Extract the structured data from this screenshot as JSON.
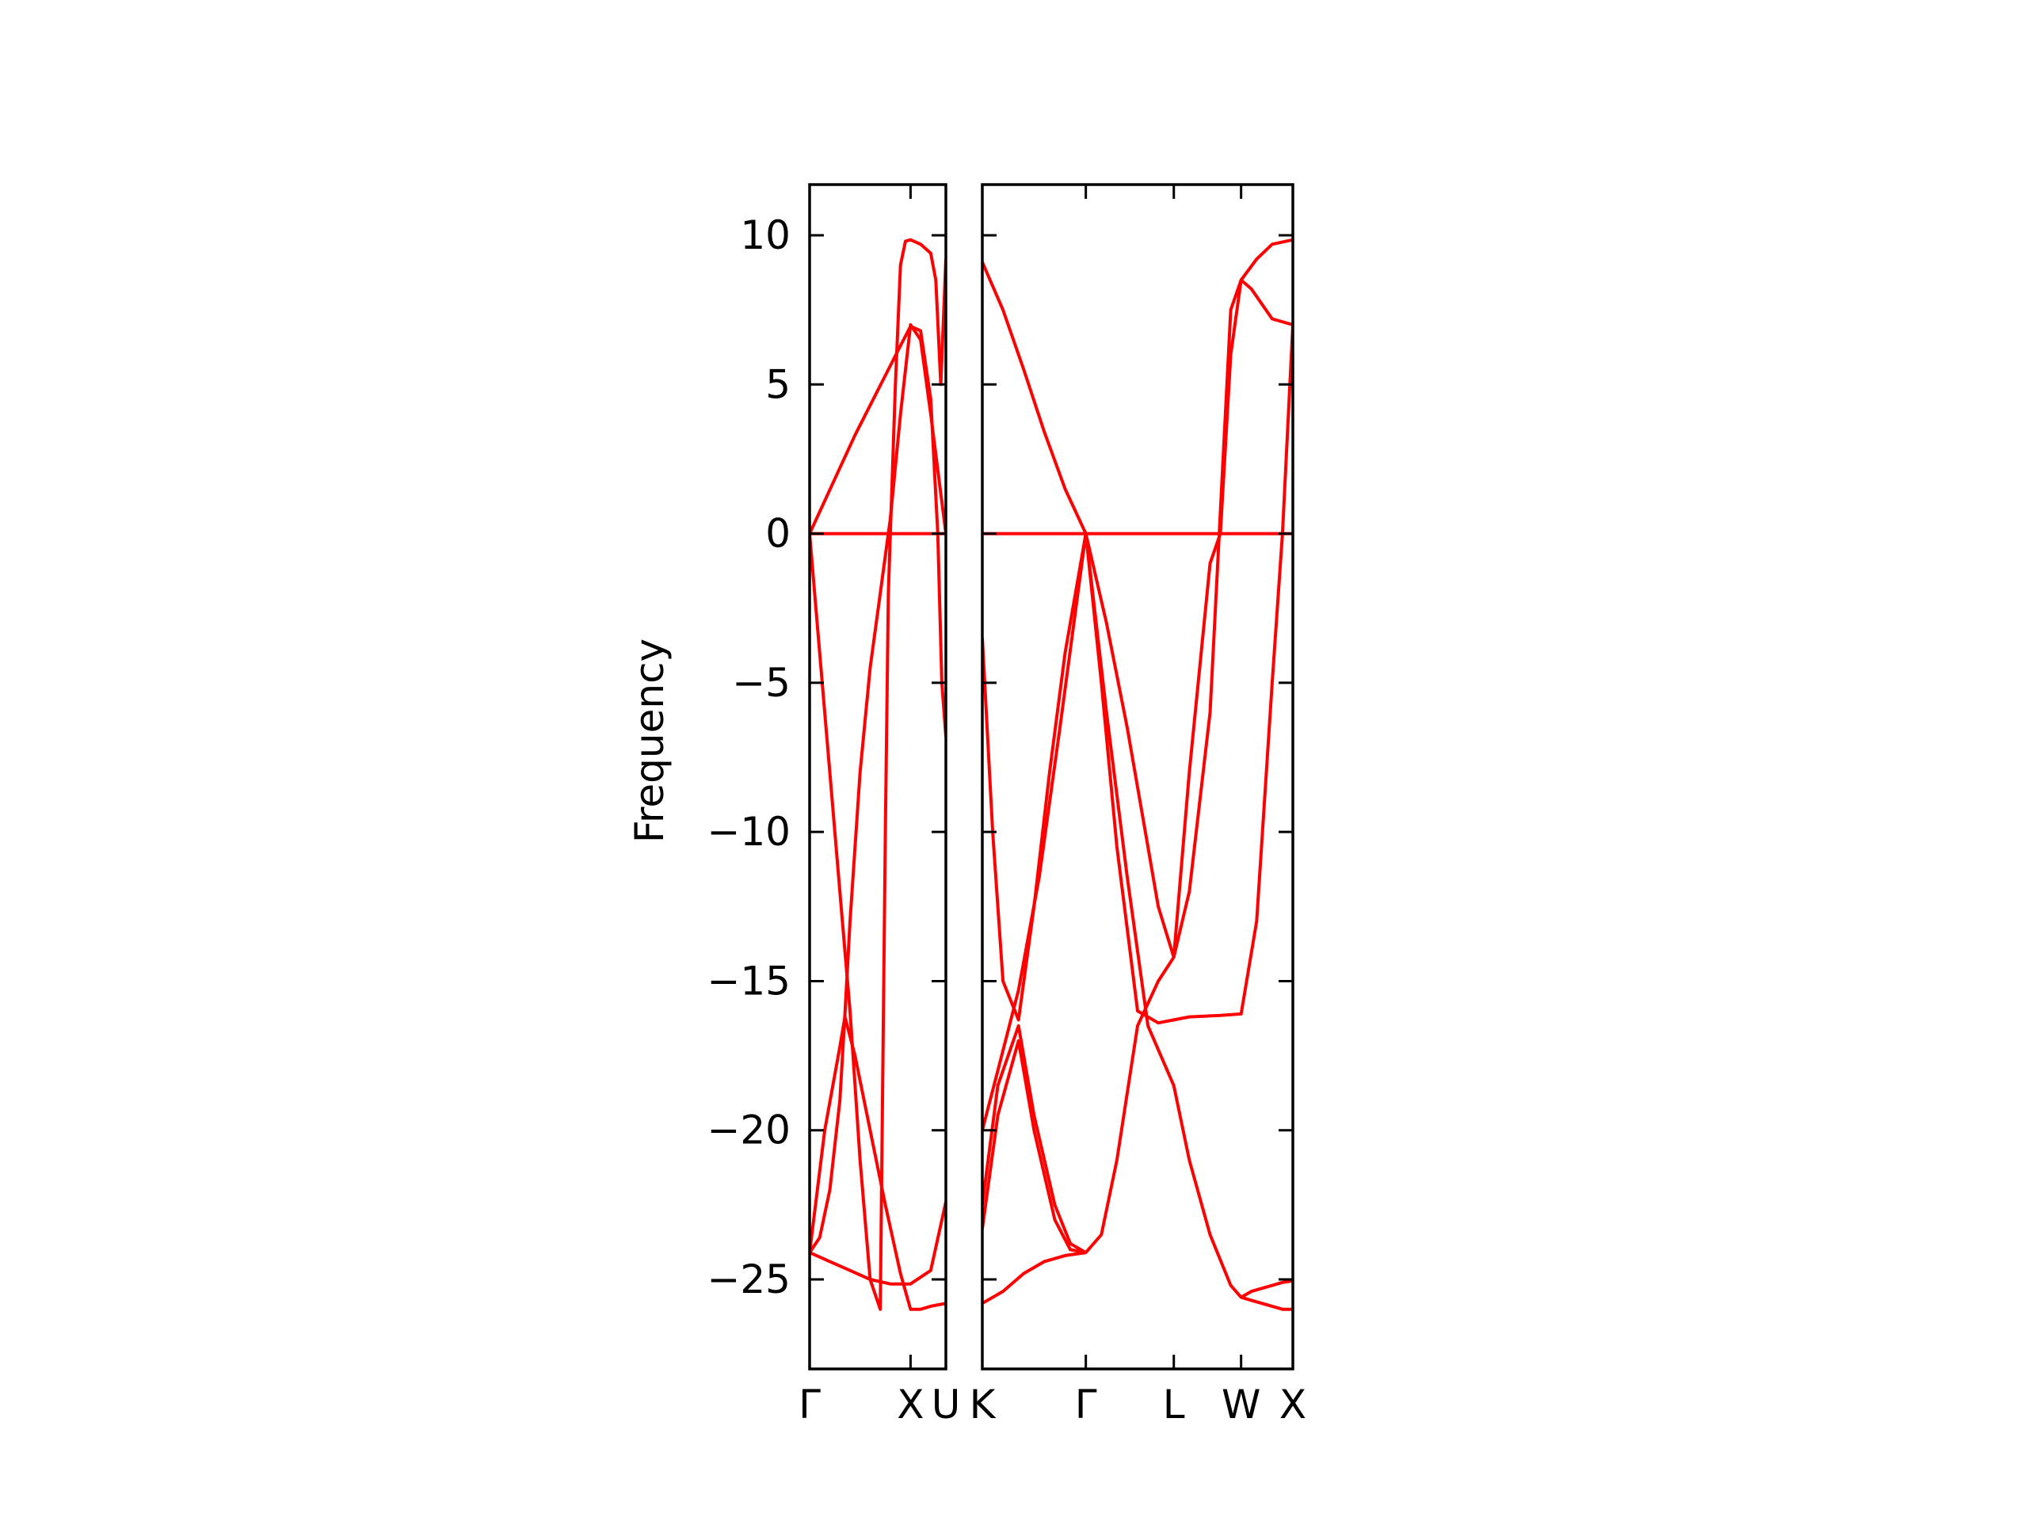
{
  "chart_data": {
    "type": "line",
    "title": "",
    "ylabel": "Frequency",
    "xlabel": "",
    "ylim": [
      -28,
      11.7
    ],
    "yticks": [
      10,
      5,
      0,
      -5,
      -10,
      -15,
      -20,
      -25
    ],
    "ytick_labels": [
      "10",
      "5",
      "0",
      "−5",
      "−10",
      "−15",
      "−20",
      "−25"
    ],
    "grid": false,
    "legend": "none",
    "line_color": "#ff0000",
    "panels": [
      {
        "name": "panel-gamma-x-u",
        "xlim": [
          0,
          1.35
        ],
        "ticks": [
          {
            "x": 0,
            "label": "Γ"
          },
          {
            "x": 1.0,
            "label": "X"
          },
          {
            "x": 1.35,
            "label": "U"
          }
        ],
        "bands": [
          {
            "x": [
              0,
              1.35
            ],
            "y": [
              0,
              0
            ]
          },
          {
            "x": [
              0,
              0.15,
              0.3,
              0.45,
              0.6,
              0.75,
              0.9,
              1.0,
              1.1,
              1.2,
              1.27,
              1.31,
              1.35
            ],
            "y": [
              0,
              1.1,
              2.2,
              3.3,
              4.3,
              5.3,
              6.3,
              6.95,
              6.8,
              4.5,
              0,
              -5,
              -6.8
            ]
          },
          {
            "x": [
              0,
              0.1,
              0.2,
              0.3,
              0.35,
              0.4,
              0.5,
              0.6,
              0.7,
              0.75,
              0.78,
              0.8,
              0.85,
              0.9,
              0.95,
              1.0,
              1.1,
              1.2,
              1.25,
              1.3,
              1.35
            ],
            "y": [
              0,
              -4,
              -8,
              -12,
              -14,
              -16,
              -21,
              -25,
              -26,
              -10,
              -2,
              0,
              5,
              9,
              9.8,
              9.85,
              9.7,
              9.4,
              8.5,
              5,
              9.2
            ]
          },
          {
            "x": [
              0,
              0.1,
              0.2,
              0.3,
              0.35,
              0.4,
              0.5,
              0.6,
              0.7,
              0.8,
              0.9,
              1.0,
              1.1,
              1.2,
              1.35
            ],
            "y": [
              -24.1,
              -23.6,
              -22,
              -19,
              -16.1,
              -13,
              -8,
              -4.5,
              -2,
              0.5,
              4,
              7,
              6.5,
              4,
              0
            ]
          },
          {
            "x": [
              0,
              0.2,
              0.4,
              0.6,
              0.8,
              1.0,
              1.2,
              1.35
            ],
            "y": [
              -24.1,
              -24.4,
              -24.7,
              -25.0,
              -25.15,
              -25.15,
              -24.7,
              -22.4
            ]
          },
          {
            "x": [
              0,
              0.15,
              0.3,
              0.35,
              0.45,
              0.6,
              0.75,
              0.9,
              1.0,
              1.1,
              1.2,
              1.35
            ],
            "y": [
              -24.1,
              -20,
              -17.2,
              -16.2,
              -17.5,
              -20,
              -22.5,
              -24.8,
              -26.0,
              -26.0,
              -25.9,
              -25.8
            ]
          }
        ]
      },
      {
        "name": "panel-k-gamma-l-w-x",
        "xlim": [
          0,
          3.0
        ],
        "ticks": [
          {
            "x": 0,
            "label": "K"
          },
          {
            "x": 1.0,
            "label": "Γ"
          },
          {
            "x": 1.85,
            "label": "L"
          },
          {
            "x": 2.5,
            "label": "W"
          },
          {
            "x": 3.0,
            "label": "X"
          }
        ],
        "bands": [
          {
            "x": [
              0,
              3.0
            ],
            "y": [
              0,
              0
            ]
          },
          {
            "x": [
              0,
              0.2,
              0.4,
              0.6,
              0.8,
              1.0,
              1.2,
              1.4,
              1.6,
              1.7,
              1.85,
              2.0,
              2.2,
              2.3,
              2.4,
              2.5,
              2.6,
              2.8,
              3.0
            ],
            "y": [
              9.1,
              7.5,
              5.5,
              3.4,
              1.5,
              0,
              -3,
              -6.5,
              -10.5,
              -12.5,
              -14.2,
              -8,
              -1,
              0,
              6,
              8.5,
              8.2,
              7.2,
              7.0
            ]
          },
          {
            "x": [
              0,
              0.1,
              0.2,
              0.35,
              0.5,
              0.65,
              0.8,
              1.0,
              1.15,
              1.3,
              1.5,
              1.7,
              1.85,
              2.0,
              2.3,
              2.5,
              2.65,
              2.8,
              2.9,
              3.0
            ],
            "y": [
              -3.5,
              -10,
              -15,
              -16.3,
              -12.5,
              -8,
              -4,
              0,
              -5,
              -10.5,
              -16,
              -16.4,
              -16.3,
              -16.2,
              -16.15,
              -16.1,
              -13,
              -5,
              0,
              7
            ]
          },
          {
            "x": [
              0,
              0.15,
              0.35,
              0.55,
              0.75,
              1.0,
              1.2,
              1.4,
              1.6,
              1.85,
              2.0,
              2.2,
              2.4,
              2.5,
              2.6,
              2.7,
              2.8,
              2.9,
              3.0
            ],
            "y": [
              -20,
              -18,
              -15.3,
              -11.5,
              -6.5,
              0,
              -6,
              -11.5,
              -16.5,
              -18.5,
              -21,
              -23.5,
              -25.2,
              -25.6,
              -25.7,
              -25.8,
              -25.9,
              -26.0,
              -26.0
            ]
          },
          {
            "x": [
              0,
              0.15,
              0.35,
              0.5,
              0.7,
              0.85,
              1.0,
              1.15,
              1.3,
              1.5,
              1.7,
              1.85,
              2.0,
              2.2,
              2.4,
              2.5,
              2.65,
              2.8,
              3.0
            ],
            "y": [
              -23.3,
              -19.5,
              -17.0,
              -20,
              -23,
              -24.0,
              -24.1,
              -23.5,
              -21,
              -16.5,
              -15,
              -14.2,
              -12,
              -6,
              7.5,
              8.5,
              9.2,
              9.7,
              9.85
            ]
          },
          {
            "x": [
              0,
              0.2,
              0.4,
              0.6,
              0.8,
              1.0
            ],
            "y": [
              -25.8,
              -25.4,
              -24.8,
              -24.4,
              -24.2,
              -24.1
            ]
          },
          {
            "x": [
              0,
              0.15,
              0.35,
              0.5,
              0.7,
              0.85,
              1.0
            ],
            "y": [
              -22.5,
              -18.5,
              -16.5,
              -19.5,
              -22.5,
              -23.8,
              -24.1
            ]
          },
          {
            "x": [
              2.5,
              2.6,
              2.7,
              2.8,
              2.9,
              3.0
            ],
            "y": [
              -25.6,
              -25.4,
              -25.3,
              -25.2,
              -25.1,
              -25.05
            ]
          }
        ]
      }
    ]
  }
}
